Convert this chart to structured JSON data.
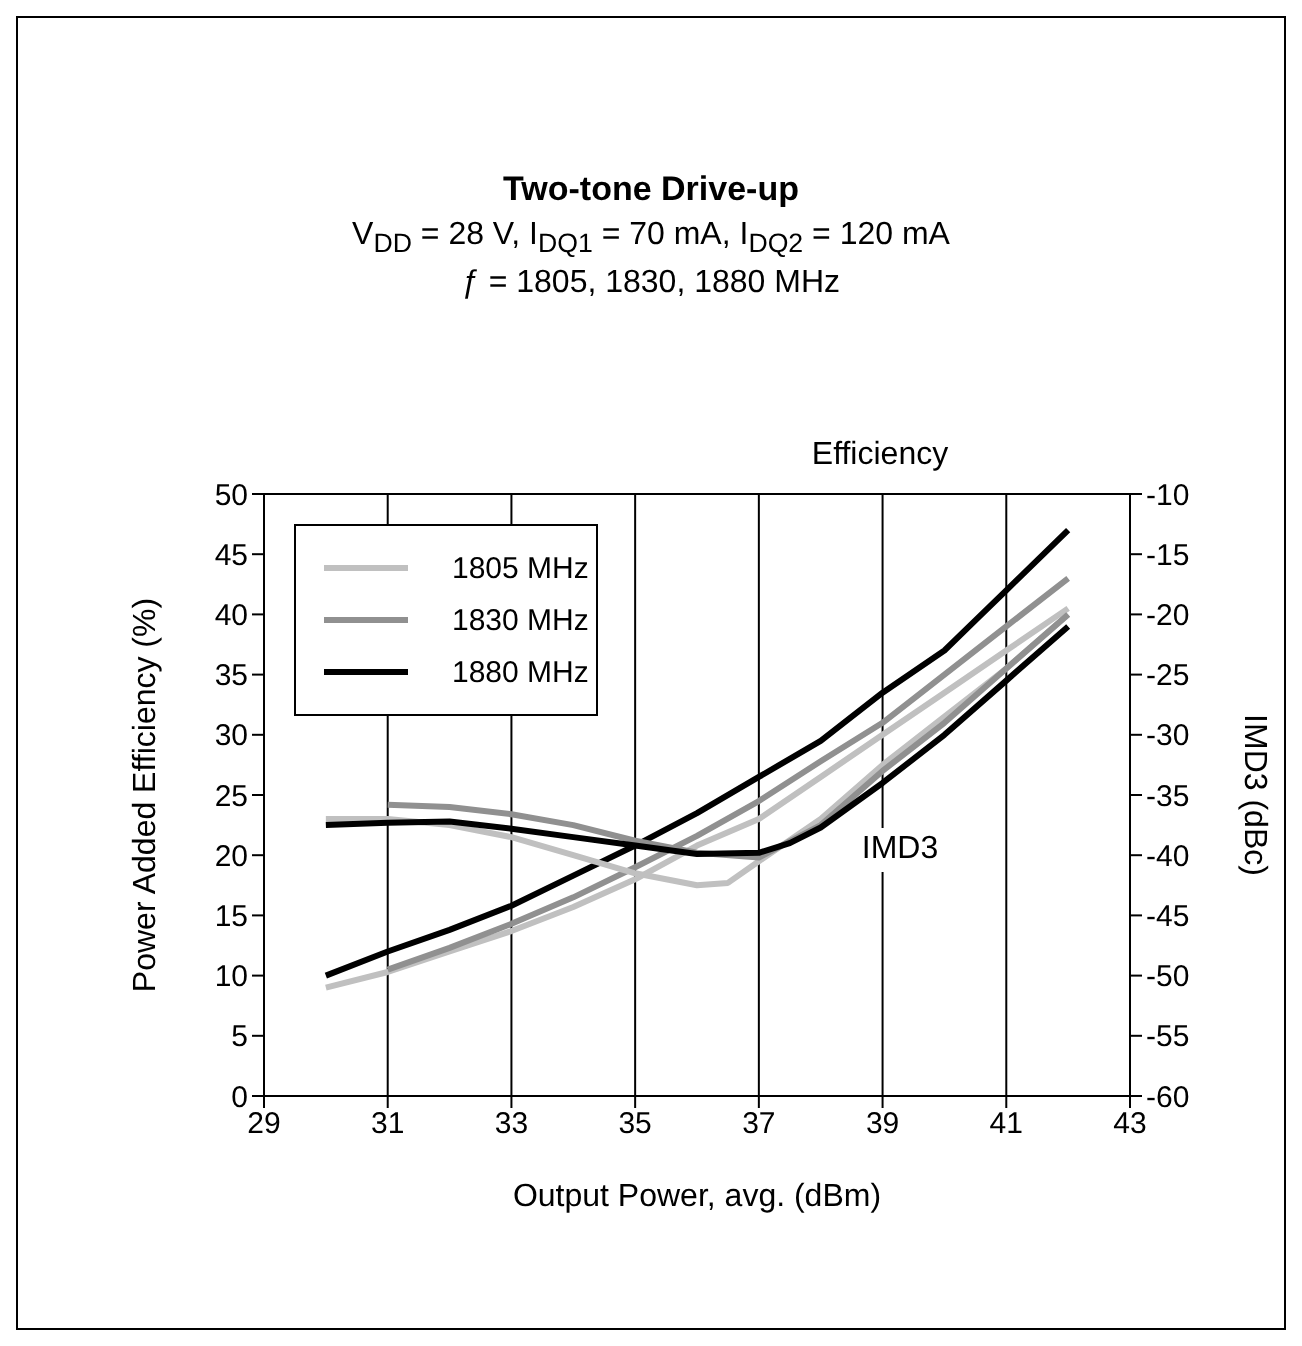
{
  "chart_data": {
    "type": "line",
    "title": "Two-tone Drive-up",
    "subtitle": "V$_{DD}$ = 28 V, I$_{DQ1}$ = 70 mA, I$_{DQ2}$ = 120 mA\nƒ = 1805, 1830, 1880 MHz",
    "xlabel": "Output Power, avg. (dBm)",
    "ylabel": "Power Added Efficiency (%)",
    "y2label": "IMD3 (dBc)",
    "xlim": [
      29,
      43
    ],
    "xticks": [
      29,
      31,
      33,
      35,
      37,
      39,
      41,
      43
    ],
    "ylim": [
      0,
      50
    ],
    "yticks": [
      0,
      5,
      10,
      15,
      20,
      25,
      30,
      35,
      40,
      45,
      50
    ],
    "y2lim": [
      -60,
      -10
    ],
    "y2ticks": [
      -60,
      -55,
      -50,
      -45,
      -40,
      -35,
      -30,
      -25,
      -20,
      -15,
      -10
    ],
    "grid": true,
    "legend": "top left",
    "marker": "none",
    "line_style": "solid",
    "annotations": [
      "Efficiency",
      "IMD3"
    ],
    "series": [
      {
        "name": "1805 MHz",
        "color": "#c0c0c0",
        "x": [
          30,
          31,
          32,
          33,
          34,
          35,
          36,
          37,
          38,
          39,
          40,
          41,
          42
        ],
        "values": [
          9,
          10.3,
          12,
          13.7,
          15.7,
          18,
          20.8,
          23,
          26.5,
          30,
          33.5,
          37,
          40.5
        ]
      },
      {
        "name": "1830 MHz",
        "color": "#909090",
        "x": [
          31,
          32,
          33,
          34,
          35,
          36,
          37,
          38,
          39,
          40,
          41,
          42
        ],
        "values": [
          10.5,
          12.3,
          14.3,
          16.5,
          19,
          21.6,
          24.5,
          27.8,
          31,
          35,
          39,
          43
        ]
      },
      {
        "name": "1880 MHz",
        "color": "#000000",
        "x": [
          30,
          31,
          32,
          33,
          34,
          35,
          36,
          37,
          38,
          39,
          40,
          40.5,
          41,
          42
        ],
        "values": [
          10,
          12,
          13.8,
          15.8,
          18.3,
          20.8,
          23.5,
          26.5,
          29.5,
          33.5,
          37,
          39.5,
          42,
          47
        ]
      },
      {
        "color": "#c0c0c0",
        "axis": "y2",
        "x": [
          30,
          31,
          32,
          33,
          34,
          35,
          36,
          36.5,
          37,
          38,
          39,
          40,
          41,
          42
        ],
        "values": [
          -37,
          -37,
          -37.5,
          -38.5,
          -40,
          -41.5,
          -42.5,
          -42.3,
          -40.5,
          -37,
          -32.5,
          -28.5,
          -24.5,
          -20
        ]
      },
      {
        "color": "#909090",
        "axis": "y2",
        "x": [
          31,
          32,
          33,
          34,
          35,
          36,
          37,
          38,
          39,
          40,
          41,
          42
        ],
        "values": [
          -35.8,
          -36,
          -36.6,
          -37.5,
          -38.8,
          -39.8,
          -40.2,
          -37.5,
          -33,
          -29,
          -24.5,
          -20
        ]
      },
      {
        "color": "#000000",
        "axis": "y2",
        "x": [
          30,
          31,
          32,
          33,
          34,
          35,
          36,
          37,
          37.5,
          38,
          39,
          40,
          41,
          42
        ],
        "values": [
          -37.5,
          -37.3,
          -37.2,
          -37.8,
          -38.5,
          -39.2,
          -39.9,
          -39.8,
          -39,
          -37.7,
          -34,
          -30,
          -25.5,
          -21
        ]
      }
    ]
  }
}
